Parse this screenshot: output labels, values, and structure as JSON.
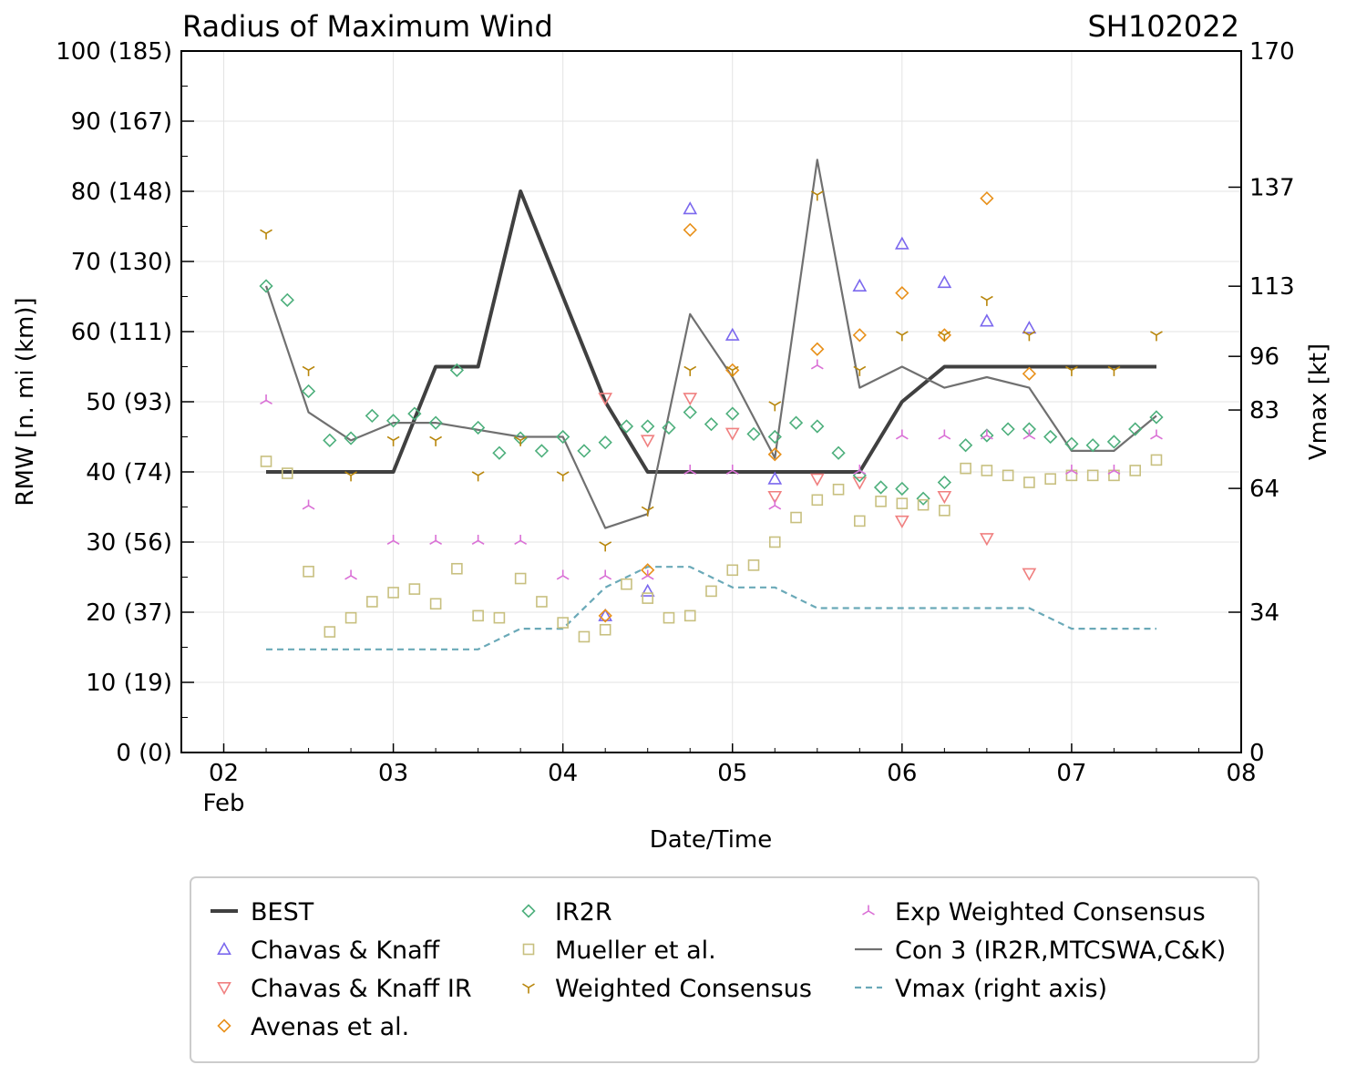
{
  "chart_data": {
    "type": "line",
    "title": "Radius of Maximum Wind",
    "storm_id": "SH102022",
    "xlabel": "Date/Time",
    "ylabel_left": "RMW [n. mi (km)]",
    "ylabel_right": "Vmax [kt]",
    "x_unit": "days since 2022-02-01 00Z",
    "xlim": [
      1.75,
      8.0
    ],
    "ylim_left": [
      0,
      100
    ],
    "ylim_right": [
      0,
      170
    ],
    "x_ticks": [
      {
        "value": 2,
        "label": "02",
        "sublabel": "Feb"
      },
      {
        "value": 3,
        "label": "03"
      },
      {
        "value": 4,
        "label": "04"
      },
      {
        "value": 5,
        "label": "05"
      },
      {
        "value": 6,
        "label": "06"
      },
      {
        "value": 7,
        "label": "07"
      },
      {
        "value": 8,
        "label": "08"
      }
    ],
    "y_left_ticks": [
      {
        "value": 0,
        "label": "0 (0)"
      },
      {
        "value": 10,
        "label": "10 (19)"
      },
      {
        "value": 20,
        "label": "20 (37)"
      },
      {
        "value": 30,
        "label": "30 (56)"
      },
      {
        "value": 40,
        "label": "40 (74)"
      },
      {
        "value": 50,
        "label": "50 (93)"
      },
      {
        "value": 60,
        "label": "60 (111)"
      },
      {
        "value": 70,
        "label": "70 (130)"
      },
      {
        "value": 80,
        "label": "80 (148)"
      },
      {
        "value": 90,
        "label": "90 (167)"
      },
      {
        "value": 100,
        "label": "100 (185)"
      }
    ],
    "y_right_ticks": [
      {
        "value": 0,
        "label": "0"
      },
      {
        "value": 34,
        "label": "34"
      },
      {
        "value": 64,
        "label": "64"
      },
      {
        "value": 83,
        "label": "83"
      },
      {
        "value": 96,
        "label": "96"
      },
      {
        "value": 113,
        "label": "113"
      },
      {
        "value": 137,
        "label": "137"
      },
      {
        "value": 170,
        "label": "170"
      }
    ],
    "series": [
      {
        "name": "BEST",
        "kind": "line",
        "color": "#404040",
        "axis": "left",
        "x": [
          2.25,
          3.0,
          3.25,
          3.5,
          3.75,
          4.25,
          4.5,
          5.75,
          6.0,
          6.25,
          7.5
        ],
        "y": [
          40,
          40,
          55,
          55,
          80,
          50,
          40,
          40,
          50,
          55,
          55
        ]
      },
      {
        "name": "Chavas & Knaff",
        "kind": "marker",
        "marker": "triangle-up",
        "color": "#7b68ee",
        "axis": "left",
        "x": [
          4.25,
          4.5,
          4.75,
          5.0,
          5.25,
          5.75,
          6.0,
          6.25,
          6.5,
          6.75
        ],
        "y": [
          19.5,
          23,
          77.5,
          59.5,
          39,
          66.5,
          72.5,
          67,
          61.5,
          60.5
        ]
      },
      {
        "name": "Chavas & Knaff IR",
        "kind": "marker",
        "marker": "triangle-down",
        "color": "#f08080",
        "axis": "left",
        "x": [
          4.25,
          4.5,
          4.75,
          5.0,
          5.25,
          5.5,
          5.75,
          6.0,
          6.25,
          6.5,
          6.75
        ],
        "y": [
          50.5,
          44.5,
          50.5,
          45.5,
          36.5,
          39,
          38.5,
          33,
          36.5,
          30.5,
          25.5
        ]
      },
      {
        "name": "Avenas et al.",
        "kind": "marker",
        "marker": "diamond",
        "color": "#e8901a",
        "axis": "left",
        "x": [
          4.25,
          4.5,
          4.75,
          5.0,
          5.25,
          5.5,
          5.75,
          6.0,
          6.25,
          6.5,
          6.75
        ],
        "y": [
          19.5,
          26,
          74.5,
          54.5,
          42.5,
          57.5,
          59.5,
          65.5,
          59.5,
          79,
          54
        ]
      },
      {
        "name": "IR2R",
        "kind": "marker",
        "marker": "diamond",
        "color": "#4daf7c",
        "axis": "left",
        "x": [
          2.25,
          2.375,
          2.5,
          2.625,
          2.75,
          2.875,
          3.0,
          3.125,
          3.25,
          3.375,
          3.5,
          3.625,
          3.75,
          3.875,
          4.0,
          4.125,
          4.25,
          4.375,
          4.5,
          4.625,
          4.75,
          4.875,
          5.0,
          5.125,
          5.25,
          5.375,
          5.5,
          5.625,
          5.75,
          5.875,
          6.0,
          6.125,
          6.25,
          6.375,
          6.5,
          6.625,
          6.75,
          6.875,
          7.0,
          7.125,
          7.25,
          7.375,
          7.5
        ],
        "y": [
          66.5,
          64.5,
          51.5,
          44.5,
          44.8,
          48,
          47.3,
          48.3,
          47,
          54.5,
          46.3,
          42.7,
          44.8,
          43,
          45,
          43,
          44.2,
          46.5,
          46.5,
          46.3,
          48.5,
          46.8,
          48.3,
          45.4,
          45,
          47,
          46.5,
          42.7,
          39.5,
          37.8,
          37.6,
          36.2,
          38.5,
          43.8,
          45.2,
          46.1,
          46.1,
          45,
          44,
          43.8,
          44.3,
          46.1,
          47.8
        ]
      },
      {
        "name": "Mueller et al.",
        "kind": "marker",
        "marker": "square",
        "color": "#c8c080",
        "axis": "left",
        "x": [
          2.25,
          2.375,
          2.5,
          2.625,
          2.75,
          2.875,
          3.0,
          3.125,
          3.25,
          3.375,
          3.5,
          3.625,
          3.75,
          3.875,
          4.0,
          4.125,
          4.25,
          4.375,
          4.5,
          4.625,
          4.75,
          4.875,
          5.0,
          5.125,
          5.25,
          5.375,
          5.5,
          5.625,
          5.75,
          5.875,
          6.0,
          6.125,
          6.25,
          6.375,
          6.5,
          6.625,
          6.75,
          6.875,
          7.0,
          7.125,
          7.25,
          7.375,
          7.5
        ],
        "y": [
          41.5,
          39.8,
          25.8,
          17.2,
          19.2,
          21.5,
          22.8,
          23.3,
          21.2,
          26.2,
          19.5,
          19.2,
          24.8,
          21.5,
          18.5,
          16.5,
          17.5,
          24,
          22,
          19.2,
          19.5,
          23,
          26,
          26.7,
          30,
          33.5,
          36,
          37.5,
          33,
          35.8,
          35.5,
          35.3,
          34.5,
          40.5,
          40.2,
          39.5,
          38.5,
          39,
          39.5,
          39.5,
          39.5,
          40.2,
          41.7
        ]
      },
      {
        "name": "Weighted Consensus",
        "kind": "marker",
        "marker": "tri-down",
        "color": "#b8860b",
        "axis": "left",
        "x": [
          2.25,
          2.5,
          2.75,
          3.0,
          3.25,
          3.5,
          3.75,
          4.0,
          4.25,
          4.5,
          4.75,
          5.0,
          5.25,
          5.5,
          5.75,
          6.0,
          6.25,
          6.5,
          6.75,
          7.0,
          7.25,
          7.5
        ],
        "y": [
          74,
          54.5,
          39.5,
          44.5,
          44.5,
          39.5,
          44.5,
          39.5,
          29.5,
          34.5,
          54.5,
          54.5,
          49.5,
          79.5,
          54.5,
          59.5,
          59.5,
          64.5,
          59.5,
          54.5,
          54.5,
          59.5
        ]
      },
      {
        "name": "Exp Weighted Consensus",
        "kind": "marker",
        "marker": "tri-up",
        "color": "#da70d6",
        "axis": "left",
        "x": [
          2.25,
          2.5,
          2.75,
          3.0,
          3.25,
          3.5,
          3.75,
          4.0,
          4.25,
          4.5,
          4.75,
          5.0,
          5.25,
          5.5,
          5.75,
          6.0,
          6.25,
          6.5,
          6.75,
          7.0,
          7.25,
          7.5
        ],
        "y": [
          50.2,
          35.2,
          25.2,
          30.2,
          30.2,
          30.2,
          30.2,
          25.2,
          25.2,
          25.2,
          40.2,
          40.2,
          35.2,
          55.2,
          40.2,
          45.2,
          45.2,
          45.2,
          45.2,
          40.2,
          40.2,
          45.2
        ]
      },
      {
        "name": "Con 3 (IR2R,MTCSWA,C&K)",
        "kind": "line",
        "color": "#707070",
        "axis": "left",
        "x": [
          2.25,
          2.5,
          2.75,
          3.0,
          3.25,
          3.5,
          3.75,
          4.0,
          4.25,
          4.5,
          4.75,
          5.0,
          5.25,
          5.5,
          5.75,
          6.0,
          6.25,
          6.5,
          6.75,
          7.0,
          7.25,
          7.5
        ],
        "y": [
          66.5,
          48.5,
          44.5,
          47,
          47,
          46,
          45,
          45,
          32,
          34,
          62.5,
          53.5,
          42,
          84.5,
          52,
          55,
          52,
          53.5,
          52,
          43,
          43,
          48
        ]
      },
      {
        "name": "Vmax (right axis)",
        "kind": "dashed",
        "color": "#6aa9b8",
        "axis": "right",
        "x": [
          2.25,
          2.5,
          2.75,
          3.0,
          3.25,
          3.5,
          3.75,
          4.0,
          4.25,
          4.5,
          4.75,
          5.0,
          5.25,
          5.5,
          5.75,
          6.0,
          6.25,
          6.5,
          6.75,
          7.0,
          7.25,
          7.5
        ],
        "y": [
          25,
          25,
          25,
          25,
          25,
          25,
          30,
          30,
          40,
          45,
          45,
          40,
          40,
          35,
          35,
          35,
          35,
          35,
          35,
          30,
          30,
          30
        ]
      }
    ],
    "legend_position": "below",
    "legend_order": [
      "BEST",
      "Chavas & Knaff",
      "Chavas & Knaff IR",
      "Avenas et al.",
      "IR2R",
      "Mueller et al.",
      "Weighted Consensus",
      "Exp Weighted Consensus",
      "Con 3 (IR2R,MTCSWA,C&K)",
      "Vmax (right axis)"
    ]
  }
}
